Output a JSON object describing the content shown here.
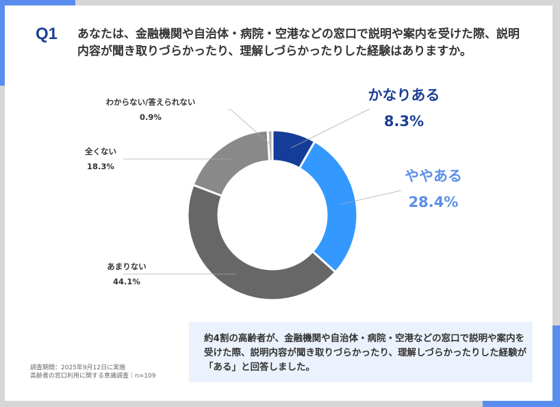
{
  "question": {
    "number": "Q1",
    "text": "あなたは、金融機関や自治体・病院・空港などの窓口で説明や案内を受けた際、説明内容が聞き取りづらかったり、理解しづらかったりした経験はありますか。"
  },
  "chart_data": {
    "type": "pie",
    "donut": true,
    "start": "top",
    "direction": "clockwise",
    "categories": [
      "かなりある",
      "ややある",
      "あまりない",
      "全くない",
      "わからない/答えられない"
    ],
    "values": [
      8.3,
      28.4,
      44.1,
      18.3,
      0.9
    ],
    "labels": [
      "8.3%",
      "28.4%",
      "44.1%",
      "18.3%",
      "0.9%"
    ],
    "colors": [
      "#143d99",
      "#3399ff",
      "#676767",
      "#898989",
      "#b0b0b0"
    ]
  },
  "summary": "約4割の高齢者が、金融機関や自治体・病院・空港などの窓口で説明や案内を受けた際、説明内容が聞き取りづらかったり、理解しづらかったりした経験が「ある」と回答しました。",
  "source": {
    "period": "調査期間：2025年9月12日に実施",
    "survey": "高齢者の窓口利用に関する意識調査｜n=109"
  }
}
